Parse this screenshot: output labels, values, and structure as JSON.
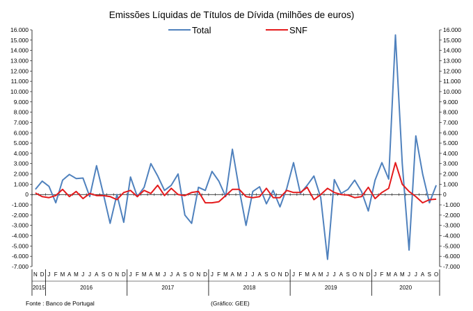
{
  "chart_data": {
    "type": "line",
    "title": "Emissões Líquidas de Títulos de Dívida (milhões de euros)",
    "source": "Fonte : Banco de Portugal",
    "credit": "(Gráfico: GEE)",
    "ylim": [
      -7000,
      16000
    ],
    "yticks": [
      "-7.000",
      "-6.000",
      "-5.000",
      "-4.000",
      "-3.000",
      "-2.000",
      "-1.000",
      "0",
      "1.000",
      "2.000",
      "3.000",
      "4.000",
      "5.000",
      "6.000",
      "7.000",
      "8.000",
      "9.000",
      "10.000",
      "11.000",
      "12.000",
      "13.000",
      "14.000",
      "15.000",
      "16.000"
    ],
    "grid": false,
    "legend_position": "top",
    "month_labels": [
      "N",
      "D",
      "J",
      "F",
      "M",
      "A",
      "M",
      "J",
      "J",
      "A",
      "S",
      "O",
      "N",
      "D",
      "J",
      "F",
      "M",
      "A",
      "M",
      "J",
      "J",
      "A",
      "S",
      "O",
      "N",
      "D",
      "J",
      "F",
      "M",
      "A",
      "M",
      "J",
      "J",
      "A",
      "S",
      "O",
      "N",
      "D",
      "J",
      "F",
      "M",
      "A",
      "M",
      "J",
      "J",
      "A",
      "S",
      "O",
      "N",
      "D",
      "J",
      "F",
      "M",
      "A",
      "M",
      "J",
      "J",
      "A",
      "S",
      "O"
    ],
    "year_labels": [
      {
        "label": "2015",
        "start": 0,
        "end": 1
      },
      {
        "label": "2016",
        "start": 2,
        "end": 13
      },
      {
        "label": "2017",
        "start": 14,
        "end": 25
      },
      {
        "label": "2018",
        "start": 26,
        "end": 37
      },
      {
        "label": "2019",
        "start": 38,
        "end": 49
      },
      {
        "label": "2020",
        "start": 50,
        "end": 59
      }
    ],
    "series": [
      {
        "name": "Total",
        "color": "#4f81bd",
        "values": [
          500,
          1300,
          800,
          -800,
          1400,
          1950,
          1550,
          1600,
          -200,
          2800,
          50,
          -2800,
          0,
          -2700,
          1700,
          -200,
          700,
          3000,
          1800,
          400,
          900,
          2000,
          -2000,
          -2800,
          700,
          400,
          2250,
          1300,
          -200,
          4400,
          500,
          -3000,
          300,
          750,
          -900,
          400,
          -1200,
          600,
          3100,
          100,
          900,
          1800,
          -300,
          -6300,
          1450,
          100,
          500,
          1400,
          300,
          -1600,
          1400,
          3100,
          1500,
          15500,
          3000,
          -5400,
          5700,
          2000,
          -800,
          900
        ]
      },
      {
        "name": "SNF",
        "color": "#e41a1c",
        "values": [
          150,
          -200,
          -300,
          -100,
          500,
          -200,
          300,
          -400,
          100,
          -100,
          -100,
          -200,
          -500,
          200,
          400,
          -200,
          400,
          100,
          900,
          -100,
          600,
          0,
          -100,
          200,
          300,
          -800,
          -800,
          -700,
          -100,
          500,
          500,
          -200,
          -300,
          -200,
          600,
          -300,
          -300,
          400,
          200,
          200,
          700,
          -500,
          0,
          600,
          200,
          0,
          -50,
          -300,
          -200,
          700,
          -400,
          200,
          600,
          3100,
          1000,
          300,
          -200,
          -800,
          -500,
          -450
        ]
      }
    ]
  }
}
